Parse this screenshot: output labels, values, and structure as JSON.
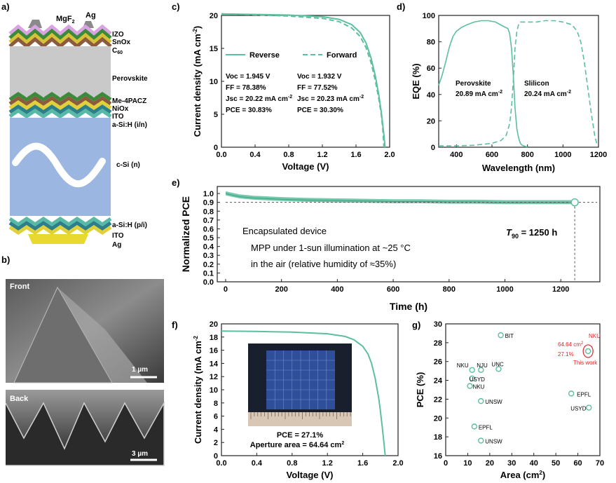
{
  "accent": "#5cbf9f",
  "accent_dark": "#3f9e80",
  "highlight": "#e0242b",
  "panel_labels": {
    "a": "a)",
    "b": "b)",
    "c": "c)",
    "d": "d)",
    "e": "e)",
    "f": "f)",
    "g": "g)"
  },
  "schematic": {
    "top_labels": [
      "MgF",
      "Ag"
    ],
    "mgf_sub": "2",
    "layers": [
      "IZO",
      "SnOx",
      "C",
      "Perovskite",
      "Me-4PACZ",
      "NiOx",
      "ITO",
      "a-Si:H (i/n)",
      "c-Si (n)",
      "a-Si:H (p/i)",
      "ITO",
      "Ag"
    ],
    "c60_sub": "60"
  },
  "sem": {
    "front_label": "Front",
    "back_label": "Back",
    "front_scale": "1 µm",
    "back_scale": "3 µm"
  },
  "chart_data": [
    {
      "id": "c",
      "type": "line",
      "xlabel": "Voltage (V)",
      "ylabel": "Current density (mA cm",
      "ylabel_sup": "-2",
      ")": ")",
      "xlim": [
        0,
        2.0
      ],
      "ylim": [
        0,
        20
      ],
      "xticks": [
        "0.0",
        "0.4",
        "0.8",
        "1.2",
        "1.6",
        "2.0"
      ],
      "yticks": [
        "0",
        "5",
        "10",
        "15",
        "20"
      ],
      "series": [
        {
          "name": "Reverse",
          "dash": false,
          "x": [
            0,
            0.4,
            0.8,
            1.2,
            1.4,
            1.55,
            1.65,
            1.72,
            1.78,
            1.83,
            1.87,
            1.9,
            1.92,
            1.935,
            1.945
          ],
          "y": [
            20.22,
            20.15,
            20.05,
            19.8,
            19.4,
            18.6,
            17.4,
            15.8,
            13.5,
            10.8,
            8.0,
            5.4,
            3.2,
            1.5,
            0
          ]
        },
        {
          "name": "Forward",
          "dash": true,
          "x": [
            0,
            0.4,
            0.8,
            1.2,
            1.4,
            1.55,
            1.65,
            1.72,
            1.78,
            1.83,
            1.87,
            1.9,
            1.915,
            1.925,
            1.932
          ],
          "y": [
            20.23,
            20.1,
            19.9,
            19.55,
            19.05,
            18.1,
            16.8,
            15.1,
            12.8,
            10.1,
            7.4,
            5.0,
            3.2,
            1.6,
            0
          ]
        }
      ],
      "legend": [
        "Reverse",
        "Forward"
      ],
      "annotations": {
        "reverse": [
          "Voc = 1.945 V",
          "FF = 78.38%",
          "Jsc = 20.22 mA cm",
          "PCE = 30.83%"
        ],
        "forward": [
          "Voc = 1.932 V",
          "FF = 77.52%",
          "Jsc = 20.23 mA cm",
          "PCE = 30.30%"
        ],
        "jsc_sup": "-2"
      }
    },
    {
      "id": "d",
      "type": "line",
      "xlabel": "Wavelength (nm)",
      "ylabel": "EQE (%)",
      "xlim": [
        300,
        1200
      ],
      "ylim": [
        0,
        100
      ],
      "xticks": [
        "400",
        "600",
        "800",
        "1000",
        "1200"
      ],
      "yticks": [
        "0",
        "20",
        "40",
        "60",
        "80",
        "100"
      ],
      "series": [
        {
          "name": "Perovskite",
          "dash": false,
          "x": [
            300,
            320,
            340,
            360,
            380,
            400,
            430,
            460,
            500,
            540,
            580,
            620,
            660,
            690,
            700,
            710,
            720,
            730,
            740,
            750,
            760,
            770,
            780,
            790,
            800
          ],
          "y": [
            47,
            55,
            65,
            76,
            84,
            88,
            91,
            93,
            95,
            96,
            96,
            95,
            92,
            90,
            86,
            75,
            55,
            30,
            14,
            7,
            3,
            1.5,
            1,
            0.5,
            0.3
          ]
        },
        {
          "name": "Silicon",
          "dash": true,
          "x": [
            300,
            400,
            500,
            600,
            650,
            680,
            700,
            710,
            720,
            730,
            740,
            750,
            760,
            780,
            800,
            850,
            900,
            950,
            1000,
            1050,
            1080,
            1100,
            1120,
            1140,
            1160,
            1180,
            1190
          ],
          "y": [
            1,
            1,
            1.5,
            3,
            5,
            9,
            18,
            30,
            50,
            75,
            88,
            93,
            95,
            95,
            95,
            95,
            96,
            96,
            95,
            93,
            88,
            80,
            65,
            45,
            25,
            8,
            3
          ]
        }
      ],
      "labels": {
        "perovskite": [
          "Perovskite",
          "20.89 mA cm"
        ],
        "silicon": [
          "Slilicon",
          "20.24 mA cm"
        ],
        "sup": "-2"
      }
    },
    {
      "id": "e",
      "type": "line",
      "xlabel": "Time (h)",
      "ylabel": "Normalized PCE",
      "xlim": [
        -30,
        1340
      ],
      "ylim": [
        0,
        1.08
      ],
      "xticks": [
        "0",
        "200",
        "400",
        "600",
        "800",
        "1000",
        "1200"
      ],
      "yticks": [
        "0.0",
        "0.1",
        "0.2",
        "0.3",
        "0.4",
        "0.5",
        "0.6",
        "0.7",
        "0.8",
        "0.9",
        "1.0"
      ],
      "series": [
        {
          "name": "PCE",
          "x": [
            0,
            20,
            50,
            100,
            200,
            300,
            400,
            500,
            600,
            700,
            800,
            900,
            1000,
            1100,
            1200,
            1250
          ],
          "y": [
            1.0,
            0.985,
            0.965,
            0.95,
            0.935,
            0.925,
            0.92,
            0.915,
            0.91,
            0.91,
            0.905,
            0.905,
            0.9,
            0.9,
            0.9,
            0.9
          ]
        }
      ],
      "marker": {
        "x": 1250,
        "y": 0.9
      },
      "text": {
        "device": "Encapsulated device",
        "cond1": "MPP under 1-sun illumination at ~25 °C",
        "cond2": "in the air (relative humidity of ≈35%)",
        "t90": "T",
        "t90_sub": "90",
        "t90_val": " = 1250 h"
      }
    },
    {
      "id": "f",
      "type": "line",
      "xlabel": "Voltage (V)",
      "ylabel": "Current density (mA cm",
      "ylabel_sup": "-2",
      "xlim": [
        0,
        2.0
      ],
      "ylim": [
        0,
        20
      ],
      "xticks": [
        "0.0",
        "0.4",
        "0.8",
        "1.2",
        "1.6",
        "2.0"
      ],
      "yticks": [
        "0",
        "2",
        "4",
        "6",
        "8",
        "10",
        "12",
        "14",
        "16",
        "18",
        "20"
      ],
      "series": [
        {
          "name": "J-V",
          "x": [
            0,
            0.4,
            0.8,
            1.2,
            1.4,
            1.5,
            1.6,
            1.66,
            1.7,
            1.74,
            1.78,
            1.8,
            1.82,
            1.84,
            1.855
          ],
          "y": [
            18.9,
            18.85,
            18.75,
            18.5,
            18.1,
            17.6,
            16.6,
            15.4,
            14.0,
            11.8,
            8.8,
            6.8,
            4.5,
            2.0,
            0
          ]
        }
      ],
      "inset": {
        "pce": "PCE = 27.1%",
        "area": "Aperture area = 64.64 cm",
        "sup": "2"
      }
    },
    {
      "id": "g",
      "type": "scatter",
      "xlabel": "Area (cm",
      "xlabel_sup": "2",
      "ylabel": "PCE (%)",
      "xlim": [
        0,
        70
      ],
      "ylim": [
        16,
        30
      ],
      "xticks": [
        "0",
        "10",
        "20",
        "30",
        "40",
        "50",
        "60",
        "70"
      ],
      "yticks": [
        "16",
        "18",
        "20",
        "22",
        "24",
        "26",
        "28",
        "30"
      ],
      "points": [
        {
          "label": "BIT",
          "x": 25,
          "y": 28.8
        },
        {
          "label": "NKU",
          "x": 12,
          "y": 25.1
        },
        {
          "label": "NJU",
          "x": 16,
          "y": 25.1
        },
        {
          "label": "UNC",
          "x": 24,
          "y": 25.2
        },
        {
          "label": "USYD",
          "x": 12,
          "y": 24.2
        },
        {
          "label": "NKU",
          "x": 11,
          "y": 23.4
        },
        {
          "label": "UNSW",
          "x": 16,
          "y": 21.8
        },
        {
          "label": "EPFL",
          "x": 13,
          "y": 19.1
        },
        {
          "label": "UNSW",
          "x": 16,
          "y": 17.6
        },
        {
          "label": "EPFL",
          "x": 57,
          "y": 22.6
        },
        {
          "label": "USYD",
          "x": 65,
          "y": 21.1
        },
        {
          "label": "NKU",
          "x": 64.64,
          "y": 27.1,
          "highlight": true
        }
      ],
      "this_work": [
        "NKU",
        "64.64 cm",
        "27.1%",
        "This work"
      ],
      "this_work_sup": "2"
    }
  ]
}
